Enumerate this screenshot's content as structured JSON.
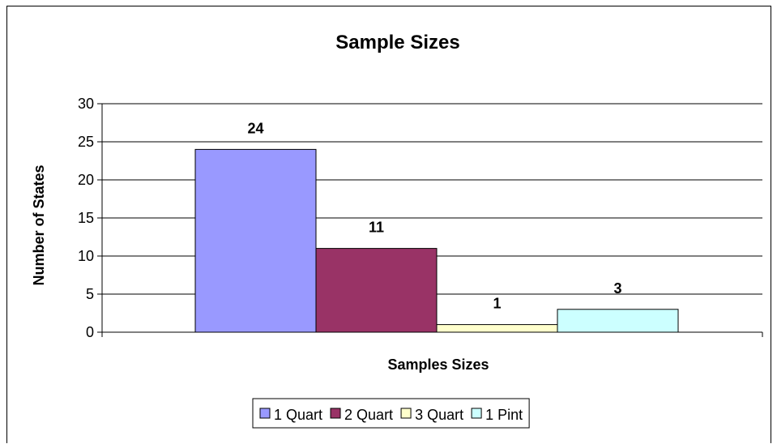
{
  "chart_data": {
    "type": "bar",
    "title": "Sample Sizes",
    "xlabel": "Samples Sizes",
    "ylabel": "Number of States",
    "ylim": [
      0,
      30
    ],
    "yticks": [
      0,
      5,
      10,
      15,
      20,
      25,
      30
    ],
    "grid": true,
    "legend_position": "bottom",
    "series": [
      {
        "name": "1 Quart",
        "values": [
          24
        ],
        "color": "#9999FF"
      },
      {
        "name": "2 Quart",
        "values": [
          11
        ],
        "color": "#993366"
      },
      {
        "name": "3 Quart",
        "values": [
          1
        ],
        "color": "#FFFFCC"
      },
      {
        "name": "1 Pint",
        "values": [
          3
        ],
        "color": "#CCFFFF"
      }
    ]
  }
}
